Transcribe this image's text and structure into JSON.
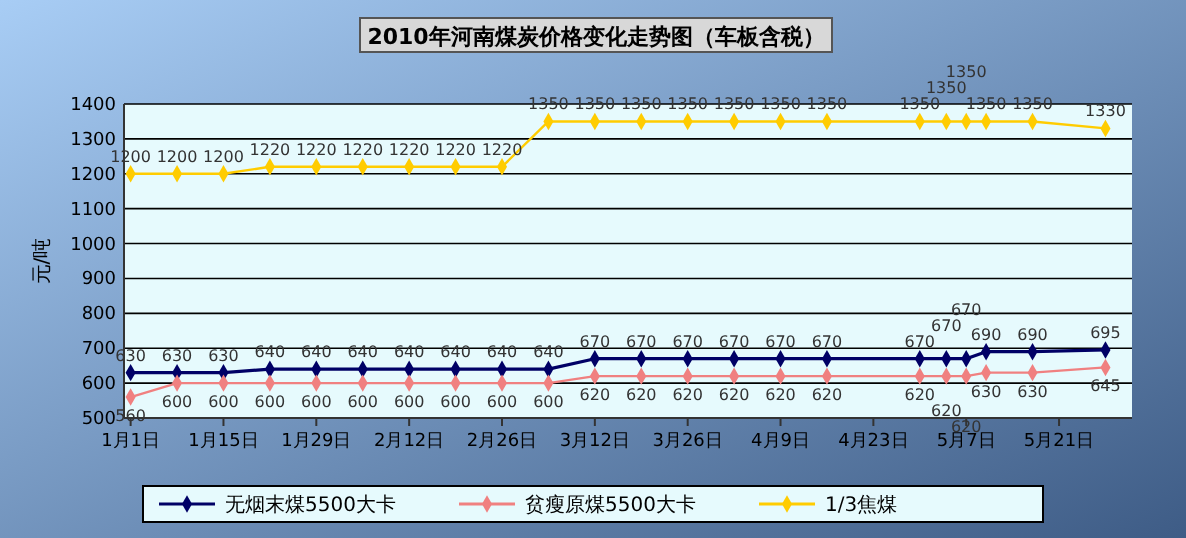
{
  "chart_data": {
    "type": "line",
    "title": "2010年河南煤炭价格变化走势图（车板含税）",
    "ylabel": "元/吨",
    "x": [
      "2010-01-01",
      "2010-01-08",
      "2010-01-15",
      "2010-01-22",
      "2010-01-29",
      "2010-02-05",
      "2010-02-12",
      "2010-02-19",
      "2010-02-26",
      "2010-03-05",
      "2010-03-12",
      "2010-03-19",
      "2010-03-26",
      "2010-04-02",
      "2010-04-09",
      "2010-04-16",
      "2010-04-30",
      "2010-05-04",
      "2010-05-07",
      "2010-05-10",
      "2010-05-17",
      "2010-05-28"
    ],
    "series": [
      {
        "name": "无烟末煤5500大卡",
        "color": "#000066",
        "values": [
          630,
          630,
          630,
          640,
          640,
          640,
          640,
          640,
          640,
          640,
          670,
          670,
          670,
          670,
          670,
          670,
          670,
          670,
          670,
          690,
          690,
          695
        ]
      },
      {
        "name": "贫瘦原煤5500大卡",
        "color": "#f08080",
        "values": [
          560,
          600,
          600,
          600,
          600,
          600,
          600,
          600,
          600,
          600,
          620,
          620,
          620,
          620,
          620,
          620,
          620,
          620,
          620,
          630,
          630,
          645
        ]
      },
      {
        "name": "1/3焦煤",
        "color": "#ffcc00",
        "values": [
          1200,
          1200,
          1200,
          1220,
          1220,
          1220,
          1220,
          1220,
          1220,
          1350,
          1350,
          1350,
          1350,
          1350,
          1350,
          1350,
          1350,
          1350,
          1350,
          1350,
          1350,
          1330
        ]
      }
    ],
    "xlim": [
      "2009-12-31",
      "2010-06-01"
    ],
    "xticks": [
      {
        "value": "2010-01-01",
        "label": "1月1日"
      },
      {
        "value": "2010-01-15",
        "label": "1月15日"
      },
      {
        "value": "2010-01-29",
        "label": "1月29日"
      },
      {
        "value": "2010-02-12",
        "label": "2月12日"
      },
      {
        "value": "2010-02-26",
        "label": "2月26日"
      },
      {
        "value": "2010-03-12",
        "label": "3月12日"
      },
      {
        "value": "2010-03-26",
        "label": "3月26日"
      },
      {
        "value": "2010-04-09",
        "label": "4月9日"
      },
      {
        "value": "2010-04-23",
        "label": "4月23日"
      },
      {
        "value": "2010-05-07",
        "label": "5月7日"
      },
      {
        "value": "2010-05-21",
        "label": "5月21日"
      }
    ],
    "ylim": [
      500,
      1400
    ],
    "yticks": [
      500,
      600,
      700,
      800,
      900,
      1000,
      1100,
      1200,
      1300,
      1400
    ],
    "grid": "y",
    "legend": "bottom",
    "marker": "diamond",
    "line_style": "solid",
    "data_labels": true
  }
}
